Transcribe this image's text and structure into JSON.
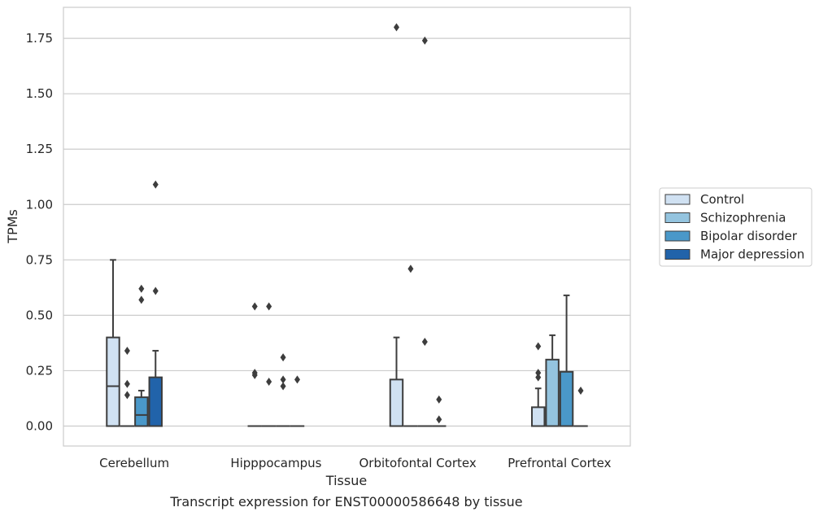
{
  "chart_data": {
    "type": "box",
    "title": "",
    "caption": "Transcript expression for ENST00000586648 by tissue",
    "xlabel": "Tissue",
    "ylabel": "TPMs",
    "ylim": [
      -0.09,
      1.89
    ],
    "yticks": [
      "0.00",
      "0.25",
      "0.50",
      "0.75",
      "1.00",
      "1.25",
      "1.50",
      "1.75"
    ],
    "grid": "horizontal",
    "legend_position": "right",
    "categories": [
      "Cerebellum",
      "Hipppocampus",
      "Orbitofontal Cortex",
      "Prefrontal Cortex"
    ],
    "series": [
      {
        "name": "Control",
        "color": "#d0e1f2",
        "boxes": [
          {
            "q1": 0.0,
            "median": 0.18,
            "q3": 0.4,
            "whisker_low": 0.0,
            "whisker_high": 0.75,
            "outliers": []
          },
          {
            "q1": 0.0,
            "median": 0.0,
            "q3": 0.0,
            "whisker_low": 0.0,
            "whisker_high": 0.0,
            "outliers": [
              0.24,
              0.23,
              0.54
            ]
          },
          {
            "q1": 0.0,
            "median": 0.0,
            "q3": 0.21,
            "whisker_low": 0.0,
            "whisker_high": 0.4,
            "outliers": [
              1.8
            ]
          },
          {
            "q1": 0.0,
            "median": 0.0,
            "q3": 0.085,
            "whisker_low": 0.0,
            "whisker_high": 0.17,
            "outliers": [
              0.36,
              0.24,
              0.22
            ]
          }
        ]
      },
      {
        "name": "Schizophrenia",
        "color": "#94c4df",
        "boxes": [
          {
            "q1": 0.0,
            "median": 0.0,
            "q3": 0.0,
            "whisker_low": 0.0,
            "whisker_high": 0.0,
            "outliers": [
              0.34,
              0.19,
              0.14
            ]
          },
          {
            "q1": 0.0,
            "median": 0.0,
            "q3": 0.0,
            "whisker_low": 0.0,
            "whisker_high": 0.0,
            "outliers": [
              0.2,
              0.54
            ]
          },
          {
            "q1": 0.0,
            "median": 0.0,
            "q3": 0.0,
            "whisker_low": 0.0,
            "whisker_high": 0.0,
            "outliers": [
              0.71
            ]
          },
          {
            "q1": 0.0,
            "median": 0.0,
            "q3": 0.3,
            "whisker_low": 0.0,
            "whisker_high": 0.41,
            "outliers": []
          }
        ]
      },
      {
        "name": "Bipolar disorder",
        "color": "#4a98c9",
        "boxes": [
          {
            "q1": 0.0,
            "median": 0.05,
            "q3": 0.13,
            "whisker_low": 0.0,
            "whisker_high": 0.16,
            "outliers": [
              0.62,
              0.57
            ]
          },
          {
            "q1": 0.0,
            "median": 0.0,
            "q3": 0.0,
            "whisker_low": 0.0,
            "whisker_high": 0.0,
            "outliers": [
              0.31,
              0.21,
              0.18
            ]
          },
          {
            "q1": 0.0,
            "median": 0.0,
            "q3": 0.0,
            "whisker_low": 0.0,
            "whisker_high": 0.0,
            "outliers": [
              1.74,
              0.38
            ]
          },
          {
            "q1": 0.0,
            "median": 0.0,
            "q3": 0.245,
            "whisker_low": 0.0,
            "whisker_high": 0.59,
            "outliers": []
          }
        ]
      },
      {
        "name": "Major depression",
        "color": "#2163aa",
        "boxes": [
          {
            "q1": 0.0,
            "median": 0.0,
            "q3": 0.22,
            "whisker_low": 0.0,
            "whisker_high": 0.34,
            "outliers": [
              1.09,
              0.61
            ]
          },
          {
            "q1": 0.0,
            "median": 0.0,
            "q3": 0.0,
            "whisker_low": 0.0,
            "whisker_high": 0.0,
            "outliers": [
              0.21
            ]
          },
          {
            "q1": 0.0,
            "median": 0.0,
            "q3": 0.0,
            "whisker_low": 0.0,
            "whisker_high": 0.0,
            "outliers": [
              0.12,
              0.03
            ]
          },
          {
            "q1": 0.0,
            "median": 0.0,
            "q3": 0.0,
            "whisker_low": 0.0,
            "whisker_high": 0.0,
            "outliers": [
              0.16
            ]
          }
        ]
      }
    ]
  }
}
